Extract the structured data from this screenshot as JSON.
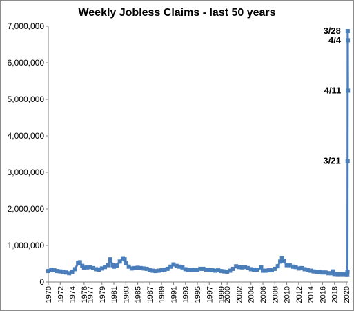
{
  "chart_data": {
    "type": "line",
    "title": "Weekly Jobless Claims - last 50 years",
    "xlabel": "",
    "ylabel": "",
    "xlim": [
      1970,
      2020.35
    ],
    "ylim": [
      0,
      7000000
    ],
    "grid": false,
    "legend": "none",
    "marker": "square",
    "series_color": "#4a7ebb",
    "yticks": [
      {
        "value": 0,
        "label": "0"
      },
      {
        "value": 1000000,
        "label": "1,000,000"
      },
      {
        "value": 2000000,
        "label": "2,000,000"
      },
      {
        "value": 3000000,
        "label": "3,000,000"
      },
      {
        "value": 4000000,
        "label": "4,000,000"
      },
      {
        "value": 5000000,
        "label": "5,000,000"
      },
      {
        "value": 6000000,
        "label": "6,000,000"
      },
      {
        "value": 7000000,
        "label": "7,000,000"
      }
    ],
    "xticks": [
      {
        "value": 1970,
        "label": "1970"
      },
      {
        "value": 1972,
        "label": "1972"
      },
      {
        "value": 1974,
        "label": "1974"
      },
      {
        "value": 1976,
        "label": "1976"
      },
      {
        "value": 1977,
        "label": "1977"
      },
      {
        "value": 1979,
        "label": "1979"
      },
      {
        "value": 1981,
        "label": "1981"
      },
      {
        "value": 1983,
        "label": "1983"
      },
      {
        "value": 1985,
        "label": "1985"
      },
      {
        "value": 1987,
        "label": "1987"
      },
      {
        "value": 1989,
        "label": "1989"
      },
      {
        "value": 1991,
        "label": "1991"
      },
      {
        "value": 1993,
        "label": "1993"
      },
      {
        "value": 1995,
        "label": "1995"
      },
      {
        "value": 1997,
        "label": "1997"
      },
      {
        "value": 1999,
        "label": "1999"
      },
      {
        "value": 2000,
        "label": "2000"
      },
      {
        "value": 2002,
        "label": "2002"
      },
      {
        "value": 2004,
        "label": "2004"
      },
      {
        "value": 2006,
        "label": "2006"
      },
      {
        "value": 2008,
        "label": "2008"
      },
      {
        "value": 2010,
        "label": "2010"
      },
      {
        "value": 2012,
        "label": "2012"
      },
      {
        "value": 2014,
        "label": "2014"
      },
      {
        "value": 2016,
        "label": "2016"
      },
      {
        "value": 2018,
        "label": "2018"
      },
      {
        "value": 2020,
        "label": "2020"
      }
    ],
    "series": [
      {
        "points": [
          [
            1970.0,
            300000
          ],
          [
            1970.5,
            340000
          ],
          [
            1971.0,
            320000
          ],
          [
            1971.5,
            300000
          ],
          [
            1972.0,
            290000
          ],
          [
            1972.5,
            280000
          ],
          [
            1973.0,
            260000
          ],
          [
            1973.5,
            240000
          ],
          [
            1974.0,
            270000
          ],
          [
            1974.5,
            350000
          ],
          [
            1975.0,
            520000
          ],
          [
            1975.3,
            540000
          ],
          [
            1975.7,
            440000
          ],
          [
            1976.0,
            390000
          ],
          [
            1976.5,
            400000
          ],
          [
            1977.0,
            410000
          ],
          [
            1977.5,
            380000
          ],
          [
            1978.0,
            350000
          ],
          [
            1978.5,
            340000
          ],
          [
            1979.0,
            370000
          ],
          [
            1979.5,
            410000
          ],
          [
            1980.0,
            460000
          ],
          [
            1980.4,
            620000
          ],
          [
            1980.8,
            460000
          ],
          [
            1981.0,
            420000
          ],
          [
            1981.5,
            450000
          ],
          [
            1982.0,
            560000
          ],
          [
            1982.5,
            650000
          ],
          [
            1982.8,
            620000
          ],
          [
            1983.0,
            520000
          ],
          [
            1983.5,
            420000
          ],
          [
            1984.0,
            370000
          ],
          [
            1984.5,
            380000
          ],
          [
            1985.0,
            390000
          ],
          [
            1985.5,
            380000
          ],
          [
            1986.0,
            370000
          ],
          [
            1986.5,
            360000
          ],
          [
            1987.0,
            330000
          ],
          [
            1987.5,
            310000
          ],
          [
            1988.0,
            300000
          ],
          [
            1988.5,
            310000
          ],
          [
            1989.0,
            320000
          ],
          [
            1989.5,
            340000
          ],
          [
            1990.0,
            360000
          ],
          [
            1990.5,
            420000
          ],
          [
            1991.0,
            480000
          ],
          [
            1991.5,
            440000
          ],
          [
            1992.0,
            420000
          ],
          [
            1992.5,
            400000
          ],
          [
            1993.0,
            350000
          ],
          [
            1993.5,
            330000
          ],
          [
            1994.0,
            340000
          ],
          [
            1994.5,
            330000
          ],
          [
            1995.0,
            330000
          ],
          [
            1995.5,
            360000
          ],
          [
            1996.0,
            360000
          ],
          [
            1996.5,
            340000
          ],
          [
            1997.0,
            330000
          ],
          [
            1997.5,
            320000
          ],
          [
            1998.0,
            310000
          ],
          [
            1998.5,
            320000
          ],
          [
            1999.0,
            300000
          ],
          [
            1999.5,
            290000
          ],
          [
            2000.0,
            280000
          ],
          [
            2000.5,
            310000
          ],
          [
            2001.0,
            360000
          ],
          [
            2001.5,
            430000
          ],
          [
            2002.0,
            410000
          ],
          [
            2002.5,
            400000
          ],
          [
            2003.0,
            410000
          ],
          [
            2003.5,
            380000
          ],
          [
            2004.0,
            350000
          ],
          [
            2004.5,
            340000
          ],
          [
            2005.0,
            330000
          ],
          [
            2005.7,
            400000
          ],
          [
            2006.0,
            310000
          ],
          [
            2006.5,
            310000
          ],
          [
            2007.0,
            320000
          ],
          [
            2007.5,
            320000
          ],
          [
            2008.0,
            360000
          ],
          [
            2008.5,
            430000
          ],
          [
            2008.9,
            560000
          ],
          [
            2009.2,
            660000
          ],
          [
            2009.5,
            580000
          ],
          [
            2010.0,
            460000
          ],
          [
            2010.5,
            460000
          ],
          [
            2011.0,
            420000
          ],
          [
            2011.5,
            410000
          ],
          [
            2012.0,
            370000
          ],
          [
            2012.5,
            380000
          ],
          [
            2013.0,
            350000
          ],
          [
            2013.5,
            330000
          ],
          [
            2014.0,
            310000
          ],
          [
            2014.5,
            290000
          ],
          [
            2015.0,
            280000
          ],
          [
            2015.5,
            270000
          ],
          [
            2016.0,
            260000
          ],
          [
            2016.5,
            260000
          ],
          [
            2017.0,
            240000
          ],
          [
            2017.5,
            240000
          ],
          [
            2017.8,
            290000
          ],
          [
            2018.0,
            220000
          ],
          [
            2018.5,
            215000
          ],
          [
            2019.0,
            215000
          ],
          [
            2019.5,
            215000
          ],
          [
            2020.0,
            215000
          ],
          [
            2020.15,
            211000
          ],
          [
            2020.18,
            282000
          ],
          [
            2020.2,
            3307000
          ],
          [
            2020.22,
            6867000
          ],
          [
            2020.24,
            6615000
          ],
          [
            2020.26,
            5237000
          ]
        ]
      }
    ],
    "annotations": [
      {
        "text": "3/28",
        "x": 2020.22,
        "y": 6867000
      },
      {
        "text": "4/4",
        "x": 2020.24,
        "y": 6615000
      },
      {
        "text": "4/11",
        "x": 2020.26,
        "y": 5237000
      },
      {
        "text": "3/21",
        "x": 2020.2,
        "y": 3307000
      }
    ]
  }
}
